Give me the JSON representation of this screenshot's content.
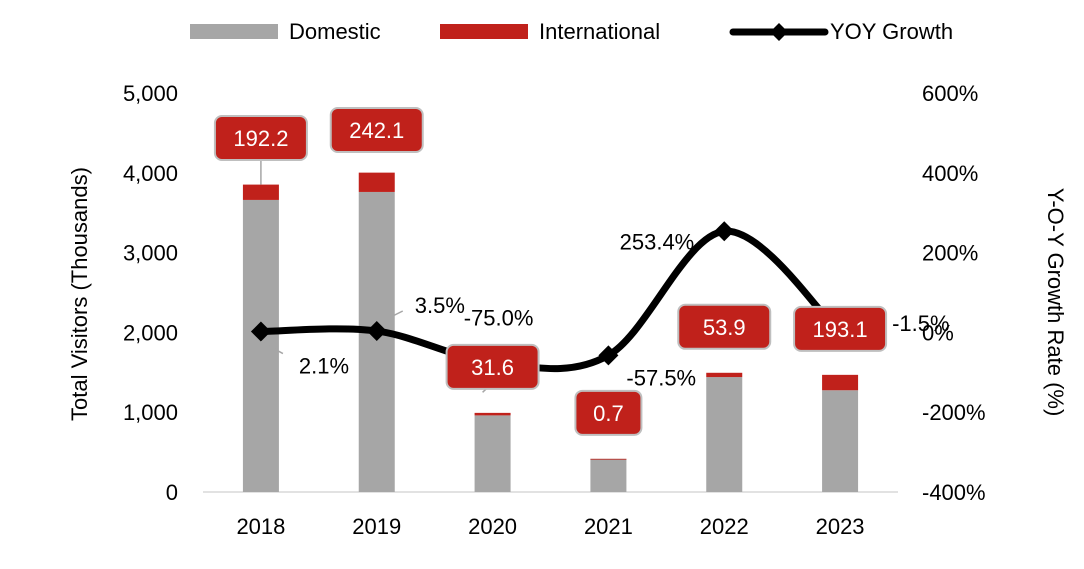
{
  "chart_data": {
    "type": "bar",
    "categories": [
      "2018",
      "2019",
      "2020",
      "2021",
      "2022",
      "2023"
    ],
    "series": [
      {
        "name": "Domestic",
        "type": "bar",
        "axis": "left",
        "color": "#a6a6a6",
        "values": [
          3660,
          3760,
          960,
          415,
          1440,
          1275
        ]
      },
      {
        "name": "International",
        "type": "bar",
        "axis": "left",
        "color": "#c0211b",
        "values": [
          192.2,
          242.1,
          31.6,
          0.7,
          53.9,
          193.1
        ]
      },
      {
        "name": "YOY Growth",
        "type": "line",
        "axis": "right",
        "color": "#000000",
        "values": [
          2.1,
          3.5,
          -75.0,
          -57.5,
          253.4,
          -1.5
        ]
      }
    ],
    "international_labels": [
      "192.2",
      "242.1",
      "31.6",
      "0.7",
      "53.9",
      "193.1"
    ],
    "growth_labels": [
      "2.1%",
      "3.5%",
      "-75.0%",
      "-57.5%",
      "253.4%",
      "-1.5%"
    ],
    "ylabel": "Total Visitors (Thousands)",
    "y2label": "Y-O-Y Growth Rate (%)",
    "ylim": [
      0,
      5000
    ],
    "y2lim": [
      -400,
      600
    ],
    "y_ticks": [
      "0",
      "1,000",
      "2,000",
      "3,000",
      "4,000",
      "5,000"
    ],
    "y2_ticks": [
      "-400%",
      "-200%",
      "0%",
      "200%",
      "400%",
      "600%"
    ],
    "legend": {
      "position": "top",
      "items": [
        "Domestic",
        "International",
        "YOY Growth"
      ]
    },
    "grid": false,
    "colors": {
      "domestic": "#a6a6a6",
      "international": "#c0211b",
      "line": "#000000",
      "label_border": "#bfbfbf"
    }
  }
}
